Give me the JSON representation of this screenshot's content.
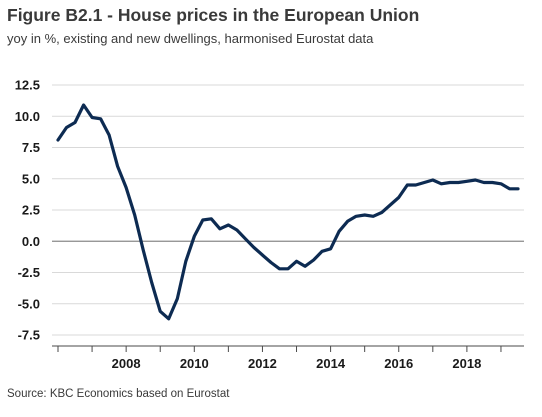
{
  "header": {
    "title": "Figure B2.1 - House prices in the European Union",
    "subtitle": "yoy in %, existing and new dwellings, harmonised Eurostat data"
  },
  "footer": {
    "source": "Source: KBC Economics based on Eurostat"
  },
  "chart_data": {
    "type": "line",
    "title": "Figure B2.1 - House prices in the European Union",
    "subtitle": "yoy in %, existing and new dwellings, harmonised Eurostat data",
    "xlabel": "",
    "ylabel": "",
    "xlim": [
      2006.0,
      2019.8
    ],
    "ylim": [
      -7.5,
      12.5
    ],
    "y_ticks": [
      -7.5,
      -5.0,
      -2.5,
      0.0,
      2.5,
      5.0,
      7.5,
      10.0,
      12.5
    ],
    "y_tick_labels": [
      "-7.5",
      "-5.0",
      "-2.5",
      "0.0",
      "2.5",
      "5.0",
      "7.5",
      "10.0",
      "12.5"
    ],
    "x_ticks": [
      2008,
      2010,
      2012,
      2014,
      2016,
      2018
    ],
    "x_tick_labels": [
      "2008",
      "2010",
      "2012",
      "2014",
      "2016",
      "2018"
    ],
    "grid": "horizontal",
    "zero_line": true,
    "line_color": "#0d2b52",
    "series": [
      {
        "name": "",
        "x": [
          2006.0,
          2006.25,
          2006.5,
          2006.75,
          2007.0,
          2007.25,
          2007.5,
          2007.75,
          2008.0,
          2008.25,
          2008.5,
          2008.75,
          2009.0,
          2009.25,
          2009.5,
          2009.75,
          2010.0,
          2010.25,
          2010.5,
          2010.75,
          2011.0,
          2011.25,
          2011.5,
          2011.75,
          2012.0,
          2012.25,
          2012.5,
          2012.75,
          2013.0,
          2013.25,
          2013.5,
          2013.75,
          2014.0,
          2014.25,
          2014.5,
          2014.75,
          2015.0,
          2015.25,
          2015.5,
          2015.75,
          2016.0,
          2016.25,
          2016.5,
          2016.75,
          2017.0,
          2017.25,
          2017.5,
          2017.75,
          2018.0,
          2018.25,
          2018.5,
          2018.75,
          2019.0,
          2019.25,
          2019.5
        ],
        "values": [
          8.1,
          9.1,
          9.5,
          10.9,
          9.9,
          9.8,
          8.5,
          6.0,
          4.3,
          2.1,
          -0.7,
          -3.3,
          -5.6,
          -6.2,
          -4.6,
          -1.6,
          0.4,
          1.7,
          1.8,
          1.0,
          1.3,
          0.9,
          0.2,
          -0.5,
          -1.1,
          -1.7,
          -2.2,
          -2.2,
          -1.6,
          -2.0,
          -1.5,
          -0.8,
          -0.6,
          0.8,
          1.6,
          2.0,
          2.1,
          2.0,
          2.3,
          2.9,
          3.5,
          4.5,
          4.5,
          4.7,
          4.9,
          4.6,
          4.7,
          4.7,
          4.8,
          4.9,
          4.7,
          4.7,
          4.6,
          4.2,
          4.2
        ]
      }
    ]
  }
}
